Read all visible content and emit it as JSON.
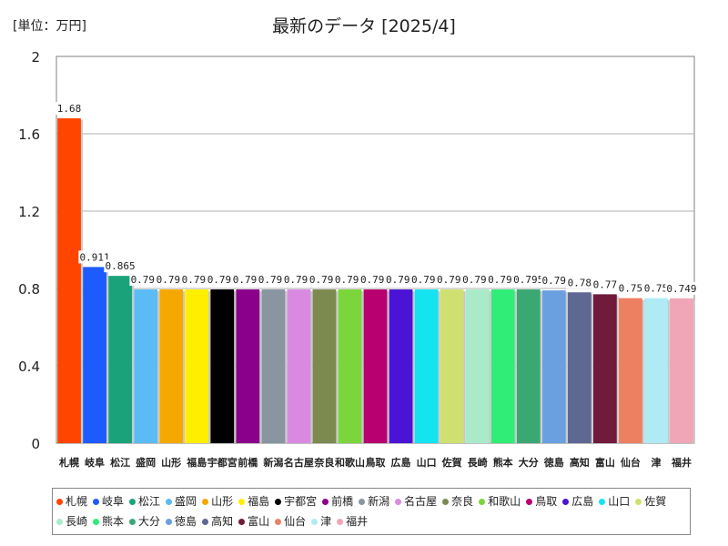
{
  "unit_label": "[単位：万円]",
  "chart_data": {
    "type": "bar",
    "title": "最新のデータ [2025/4]",
    "ylabel": "",
    "xlabel": "",
    "ylim": [
      0,
      2
    ],
    "yticks": [
      "0",
      "0.4",
      "0.8",
      "1.2",
      "1.6",
      "2"
    ],
    "ytick_values": [
      0,
      0.4,
      0.8,
      1.2,
      1.6,
      2
    ],
    "grid": true,
    "legend_position": "bottom",
    "categories": [
      "札幌",
      "岐阜",
      "松江",
      "盛岡",
      "山形",
      "福島",
      "宇都宮",
      "前橋",
      "新潟",
      "名古屋",
      "奈良",
      "和歌山",
      "鳥取",
      "広島",
      "山口",
      "佐賀",
      "長崎",
      "熊本",
      "大分",
      "徳島",
      "高知",
      "富山",
      "仙台",
      "津",
      "福井"
    ],
    "values": [
      1.68,
      0.911,
      0.865,
      0.795,
      0.795,
      0.795,
      0.795,
      0.795,
      0.795,
      0.795,
      0.795,
      0.795,
      0.795,
      0.795,
      0.795,
      0.795,
      0.795,
      0.795,
      0.795,
      0.79,
      0.78,
      0.77,
      0.75,
      0.75,
      0.749
    ],
    "data_labels": [
      "1.68",
      "0.911",
      "0.865",
      "0.795",
      "0.795",
      "0.795",
      "0.795",
      "0.795",
      "0.795",
      "0.795",
      "0.795",
      "0.795",
      "0.795",
      "0.795",
      "0.795",
      "0.795",
      "0.795",
      "0.795",
      "0.795",
      "0.79",
      "0.78",
      "0.77",
      "0.75",
      "0.75",
      "0.749"
    ],
    "colors": [
      "#ff4500",
      "#1e5bff",
      "#1aa37a",
      "#5bbcf5",
      "#f5a800",
      "#ffee00",
      "#000000",
      "#8b008b",
      "#8796a0",
      "#d98ae0",
      "#7c8a50",
      "#7bd63c",
      "#b8006e",
      "#4b13d6",
      "#14e3f0",
      "#cfe070",
      "#a9ebc9",
      "#2fed77",
      "#3ba874",
      "#6aa0e0",
      "#5f6793",
      "#701a3c",
      "#ee8062",
      "#b0ebf5",
      "#f0a6b6"
    ]
  }
}
